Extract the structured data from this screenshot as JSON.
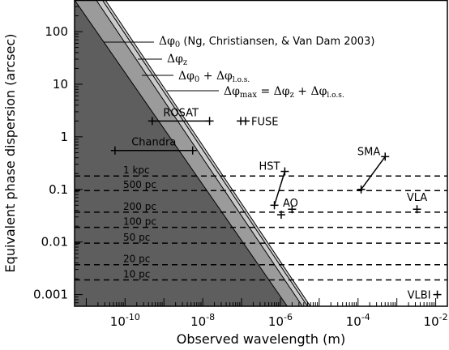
{
  "chart_data": {
    "type": "scatter",
    "xlabel": "Observed wavelength (m)",
    "ylabel": "Equivalent phase dispersion (arcsec)",
    "xlim": [
      5e-12,
      0.02
    ],
    "ylim": [
      0.0006,
      400
    ],
    "x_scale": "log",
    "y_scale": "log",
    "x_ticks": [
      {
        "value": 1e-10,
        "base": "10",
        "exp": "-10"
      },
      {
        "value": 1e-08,
        "base": "10",
        "exp": "-8"
      },
      {
        "value": 1e-06,
        "base": "10",
        "exp": "-6"
      },
      {
        "value": 0.0001,
        "base": "10",
        "exp": "-4"
      },
      {
        "value": 0.01,
        "base": "10",
        "exp": "-2"
      }
    ],
    "y_ticks": [
      {
        "value": 100,
        "label": "100"
      },
      {
        "value": 10,
        "label": "10"
      },
      {
        "value": 1,
        "label": "1"
      },
      {
        "value": 0.1,
        "label": "0.1"
      },
      {
        "value": 0.01,
        "label": "0.01"
      },
      {
        "value": 0.001,
        "label": "0.001"
      }
    ],
    "region_lines": [
      {
        "name": "Δφ₀ (Ng, Christiansen, & Van Dam 2003)",
        "x0": 5e-12,
        "y0": 400,
        "x1": 1.5e-06,
        "y1": 0.0006
      },
      {
        "name": "Δφz",
        "x0": 1.8e-11,
        "y0": 400,
        "x1": 3.7e-06,
        "y1": 0.0006
      },
      {
        "name": "Δφ₀ + Δφl.o.s.",
        "x0": 2.6e-11,
        "y0": 400,
        "x1": 5e-06,
        "y1": 0.0006
      },
      {
        "name": "Δφmax = Δφz + Δφl.o.s.",
        "x0": 3.1e-11,
        "y0": 400,
        "x1": 5.9e-06,
        "y1": 0.0006
      }
    ],
    "fill_colors": [
      "#5e5e5e",
      "#9b9b9b",
      "#cbcbcb"
    ],
    "distance_lines": [
      {
        "label": "1 kpc",
        "y": 0.18
      },
      {
        "label": "500 pc",
        "y": 0.095
      },
      {
        "label": "200 pc",
        "y": 0.037
      },
      {
        "label": "100 pc",
        "y": 0.019
      },
      {
        "label": "50 pc",
        "y": 0.0095
      },
      {
        "label": "20 pc",
        "y": 0.0037
      },
      {
        "label": "10 pc",
        "y": 0.0019
      }
    ],
    "range_points": [
      {
        "label": "ROSAT",
        "x_min": 5e-10,
        "x_max": 1.5e-08,
        "y": 2.0
      },
      {
        "label": "Chandra",
        "x_min": 5.5e-11,
        "x_max": 5.5e-09,
        "y": 0.55
      }
    ],
    "points": [
      {
        "label": "FUSE",
        "x": 1.1e-07,
        "y": 2.0
      },
      {
        "label": "VLA",
        "x": 0.0033,
        "y": 0.042
      },
      {
        "label": "VLBI",
        "x": 0.011,
        "y": 0.001
      },
      {
        "label": "AO",
        "x": 1.05e-06,
        "y": 0.033
      },
      {
        "label": "",
        "x": 2e-06,
        "y": 0.042
      }
    ],
    "segments": [
      {
        "label": "HST",
        "x0": 7e-07,
        "y0": 0.05,
        "x1": 1.3e-06,
        "y1": 0.22
      },
      {
        "label": "SMA",
        "x0": 0.00012,
        "y0": 0.1,
        "x1": 0.0005,
        "y1": 0.42
      }
    ],
    "annotations": {
      "line1": {
        "symbol": "Δφ",
        "sub": "0",
        "rest": " (Ng, Christiansen, & Van Dam 2003)"
      },
      "line2": {
        "symbol": "Δφ",
        "sub": "z"
      },
      "line3": {
        "a": "Δφ",
        "a_sub": "0",
        "op": " + ",
        "b": "Δφ",
        "b_sub": "l.o.s."
      },
      "line4": {
        "a": "Δφ",
        "a_sub": "max",
        "eq": " = ",
        "b": "Δφ",
        "b_sub": "z",
        "op": " + ",
        "c": "Δφ",
        "c_sub": "l.o.s."
      }
    },
    "grid": false,
    "legend": "none"
  }
}
